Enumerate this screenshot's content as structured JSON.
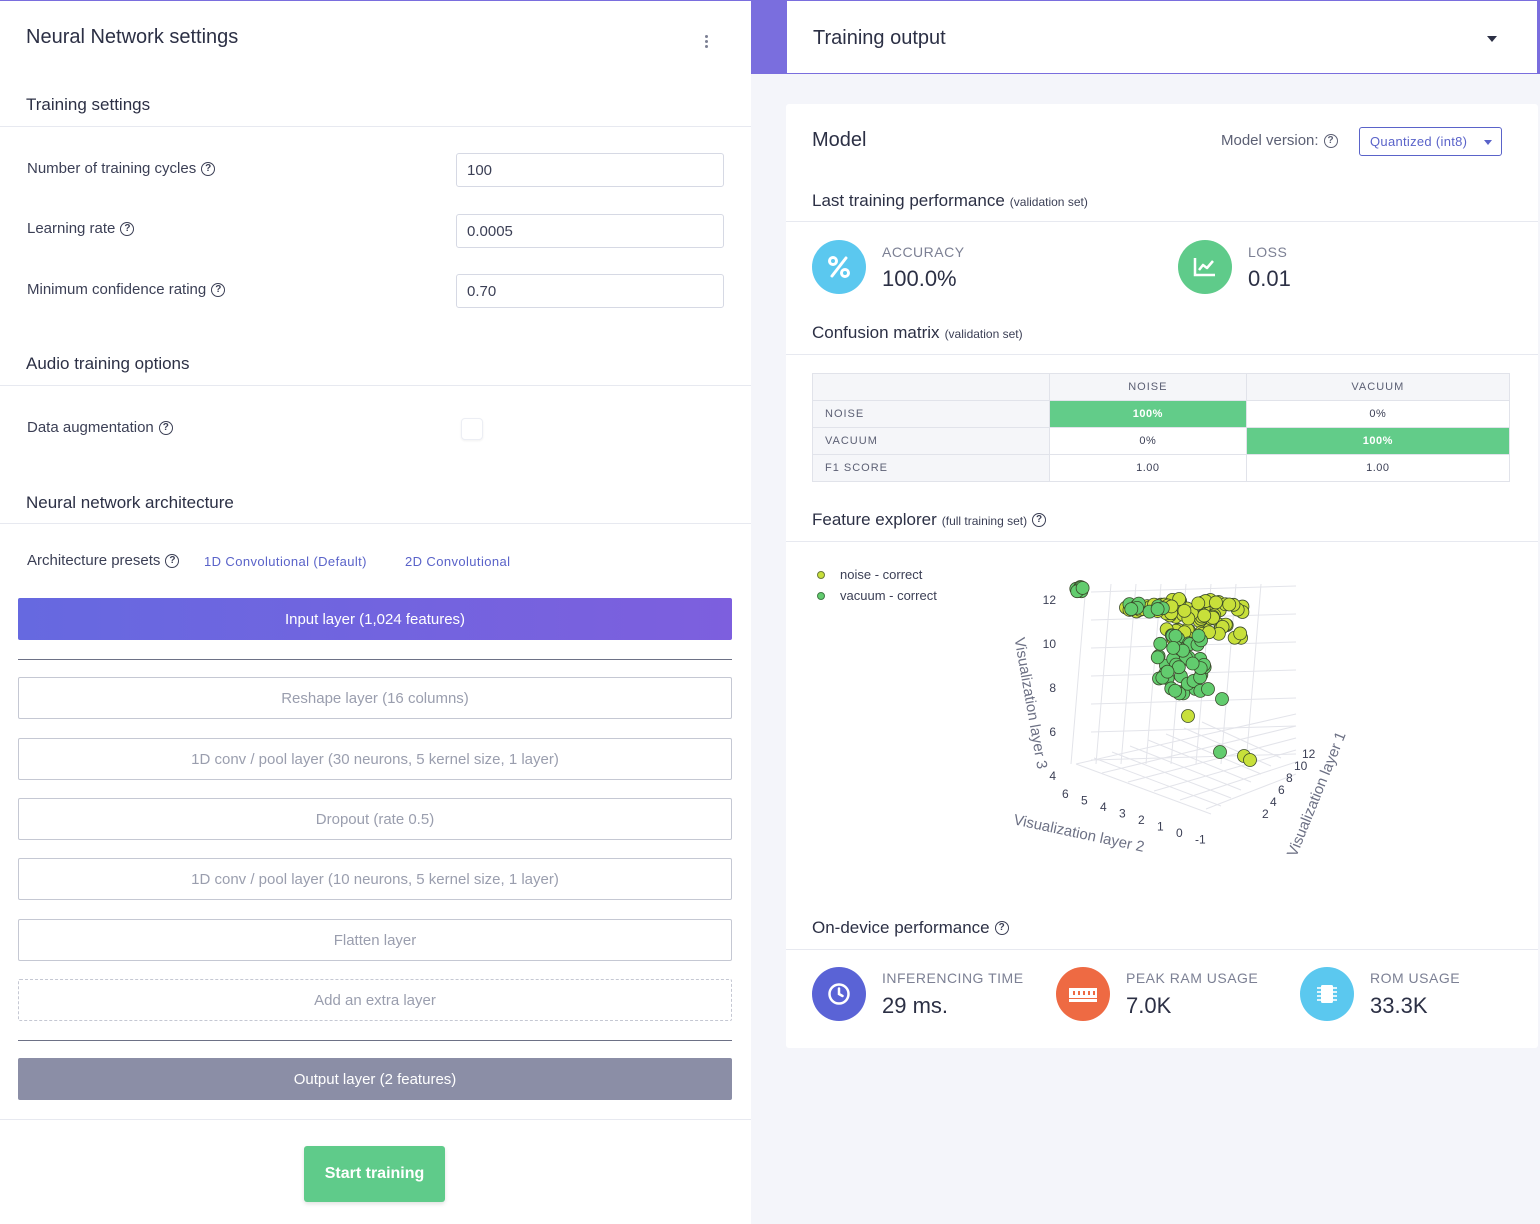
{
  "left": {
    "title": "Neural Network settings",
    "training_settings": {
      "title": "Training settings",
      "fields": [
        {
          "label": "Number of training cycles",
          "value": "100"
        },
        {
          "label": "Learning rate",
          "value": "0.0005"
        },
        {
          "label": "Minimum confidence rating",
          "value": "0.70"
        }
      ]
    },
    "audio": {
      "title": "Audio training options",
      "data_augmentation_label": "Data augmentation",
      "data_augmentation_checked": false
    },
    "architecture": {
      "title": "Neural network architecture",
      "presets_label": "Architecture presets",
      "presets": [
        "1D Convolutional (Default)",
        "2D Convolutional"
      ],
      "input_layer": "Input layer (1,024 features)",
      "layers": [
        "Reshape layer (16 columns)",
        "1D conv / pool layer (30 neurons, 5 kernel size, 1 layer)",
        "Dropout (rate 0.5)",
        "1D conv / pool layer (10 neurons, 5 kernel size, 1 layer)",
        "Flatten layer"
      ],
      "add_layer": "Add an extra layer",
      "output_layer": "Output layer (2 features)"
    },
    "start_button": "Start training"
  },
  "right": {
    "header_title": "Training output",
    "model": {
      "title": "Model",
      "version_label": "Model version:",
      "version_value": "Quantized (int8)"
    },
    "last_training": {
      "title": "Last training performance",
      "subtitle": "(validation set)",
      "accuracy_label": "ACCURACY",
      "accuracy_value": "100.0%",
      "loss_label": "LOSS",
      "loss_value": "0.01"
    },
    "confusion": {
      "title": "Confusion matrix",
      "subtitle": "(validation set)",
      "columns": [
        "NOISE",
        "VACUUM"
      ],
      "rows": [
        {
          "label": "NOISE",
          "cells": [
            "100%",
            "0%"
          ]
        },
        {
          "label": "VACUUM",
          "cells": [
            "0%",
            "100%"
          ]
        },
        {
          "label": "F1 SCORE",
          "cells": [
            "1.00",
            "1.00"
          ]
        }
      ]
    },
    "feature_explorer": {
      "title": "Feature explorer",
      "subtitle": "(full training set)",
      "legend": [
        "noise - correct",
        "vacuum - correct"
      ],
      "axis_z_label": "Visualization layer 3",
      "axis_x_label": "Visualization layer 2",
      "axis_y_label": "Visualization layer 1",
      "z_ticks": [
        "12",
        "10",
        "8",
        "6",
        "4"
      ],
      "x_ticks": [
        "6",
        "5",
        "4",
        "3",
        "2",
        "1",
        "0",
        "-1"
      ],
      "y_ticks": [
        "2",
        "4",
        "6",
        "8",
        "10",
        "12"
      ]
    },
    "on_device": {
      "title": "On-device performance",
      "metrics": [
        {
          "label": "INFERENCING TIME",
          "value": "29 ms."
        },
        {
          "label": "PEAK RAM USAGE",
          "value": "7.0K"
        },
        {
          "label": "ROM USAGE",
          "value": "33.3K"
        }
      ]
    }
  },
  "colors": {
    "accent": "#7a6ede",
    "green": "#5fcb8a",
    "noise_point": "#c8e03a",
    "vacuum_point": "#62cc6e"
  }
}
